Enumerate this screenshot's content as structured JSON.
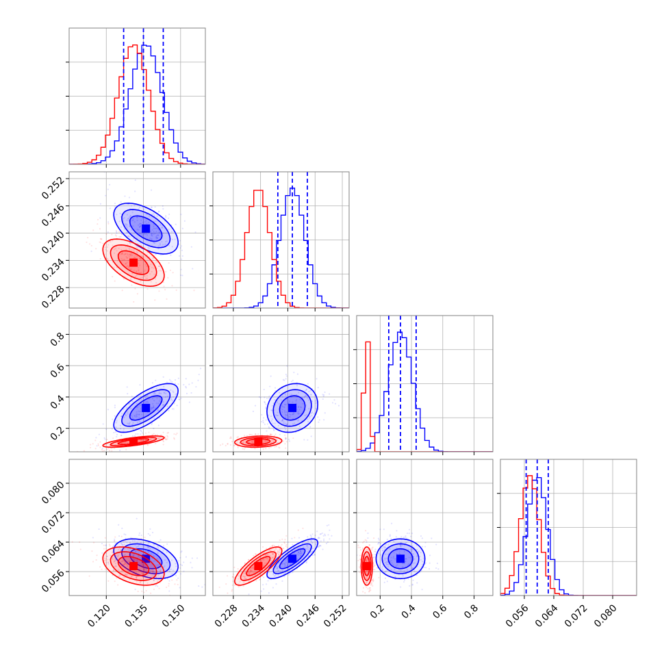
{
  "colors": {
    "sample_a": "#0000ff",
    "sample_b": "#ff0000",
    "grid": "#b0b0b0",
    "frame": "#808080"
  },
  "chart_data": {
    "type": "corner",
    "title": "",
    "grid": true,
    "legend": "none",
    "series": [
      {
        "color": "#0000ff",
        "means": [
          0.136,
          0.241,
          0.33,
          0.0595
        ],
        "sigmas": [
          0.0065,
          0.0028,
          0.078,
          0.0027
        ],
        "quantiles_shown": true
      },
      {
        "color": "#ff0000",
        "means": [
          0.131,
          0.2335,
          0.115,
          0.0575
        ],
        "sigmas": [
          0.0062,
          0.0026,
          0.018,
          0.0026
        ],
        "quantiles_shown": false
      }
    ],
    "quantile_lines": [
      [
        0.127,
        0.135,
        0.143
      ],
      [
        0.2378,
        0.241,
        0.2443
      ],
      [
        0.255,
        0.33,
        0.43
      ],
      [
        0.0565,
        0.0595,
        0.0625
      ]
    ],
    "params": [
      {
        "range": [
          0.105,
          0.16
        ],
        "ticks": [
          "0.120",
          "0.135",
          "0.150"
        ],
        "tick_values": [
          0.12,
          0.135,
          0.15
        ]
      },
      {
        "range": [
          0.2235,
          0.2535
        ],
        "ticks": [
          "0.228",
          "0.234",
          "0.240",
          "0.246",
          "0.252"
        ],
        "tick_values": [
          0.228,
          0.234,
          0.24,
          0.246,
          0.252
        ]
      },
      {
        "range": [
          0.05,
          0.92
        ],
        "ticks": [
          "0.2",
          "0.4",
          "0.6",
          "0.8"
        ],
        "tick_values": [
          0.2,
          0.4,
          0.6,
          0.8
        ]
      },
      {
        "range": [
          0.0495,
          0.0865
        ],
        "ticks": [
          "0.056",
          "0.064",
          "0.072",
          "0.080"
        ],
        "tick_values": [
          0.056,
          0.064,
          0.072,
          0.08
        ]
      }
    ],
    "correlations": [
      [
        1,
        -0.55,
        0.7,
        -0.4
      ],
      [
        -0.55,
        1,
        0.15,
        0.8
      ],
      [
        0.7,
        0.15,
        1,
        0.0
      ],
      [
        -0.4,
        0.8,
        0.0,
        1
      ]
    ]
  }
}
